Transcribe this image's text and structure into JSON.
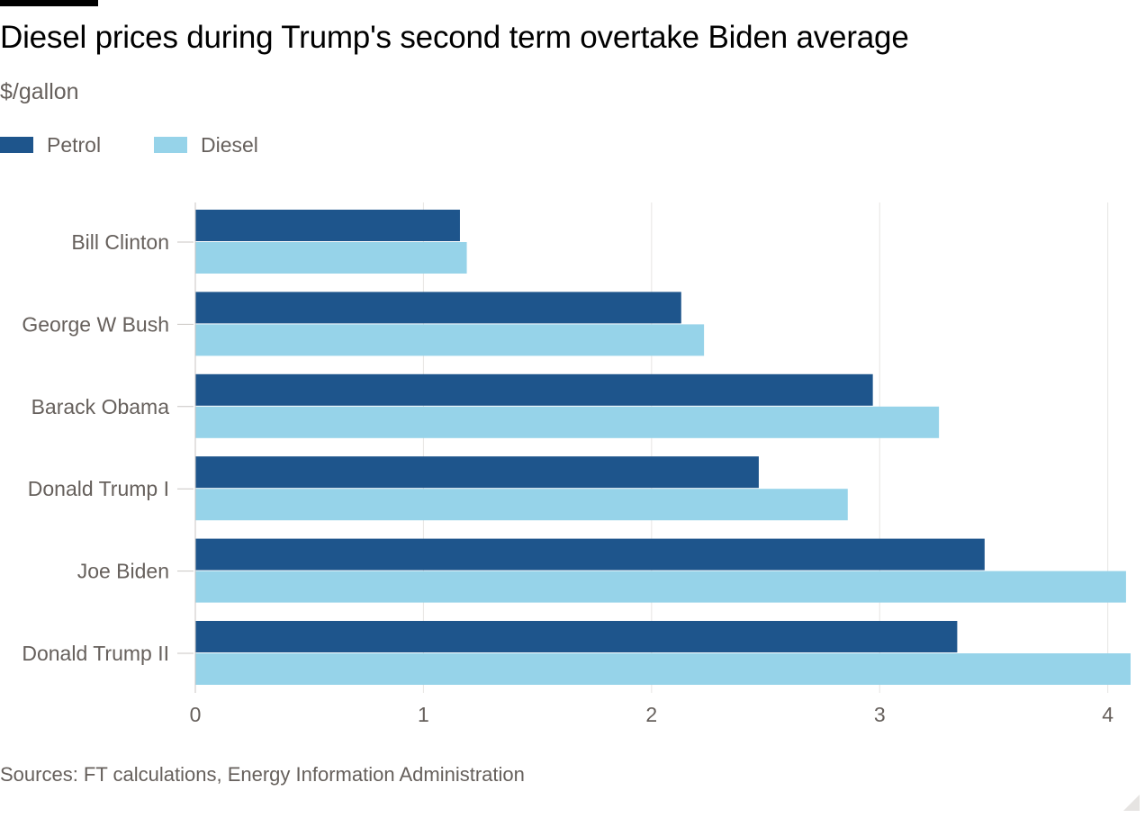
{
  "header": {
    "title": "Diesel prices during Trump's second term overtake Biden average",
    "subtitle": "$/gallon"
  },
  "legend": {
    "items": [
      {
        "label": "Petrol",
        "color": "#1e558c"
      },
      {
        "label": "Diesel",
        "color": "#96d3e9"
      }
    ]
  },
  "footer": {
    "source": "Sources: FT calculations, Energy Information Administration"
  },
  "chart_data": {
    "type": "bar",
    "orientation": "horizontal",
    "categories": [
      "Bill Clinton",
      "George W Bush",
      "Barack Obama",
      "Donald Trump I",
      "Joe Biden",
      "Donald Trump II"
    ],
    "series": [
      {
        "name": "Petrol",
        "color": "#1e558c",
        "values": [
          1.16,
          2.13,
          2.97,
          2.47,
          3.46,
          3.34
        ]
      },
      {
        "name": "Diesel",
        "color": "#96d3e9",
        "values": [
          1.19,
          2.23,
          3.26,
          2.86,
          4.08,
          4.1
        ]
      }
    ],
    "xlim": [
      0,
      4.1
    ],
    "xticks": [
      0,
      1,
      2,
      3,
      4
    ],
    "xtick_labels": [
      "0",
      "1",
      "2",
      "3",
      "4"
    ],
    "grid": true,
    "legend_position": "top-left"
  }
}
